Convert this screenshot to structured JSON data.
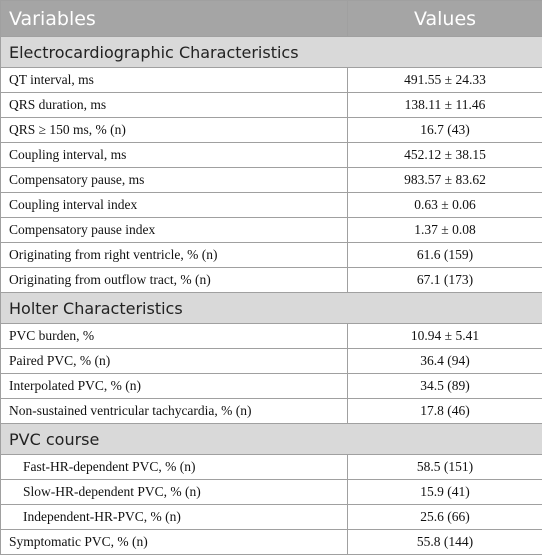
{
  "header": {
    "columns": [
      "Variables",
      "Values"
    ]
  },
  "sections": [
    {
      "title": "Electrocardiographic Characteristics",
      "rows": [
        [
          "QT interval, ms",
          "491.55 ± 24.33"
        ],
        [
          "QRS duration, ms",
          "138.11 ± 11.46"
        ],
        [
          "QRS ≥ 150 ms, % (n)",
          "16.7 (43)"
        ],
        [
          "Coupling interval, ms",
          "452.12 ± 38.15"
        ],
        [
          "Compensatory pause, ms",
          "983.57 ± 83.62"
        ],
        [
          "Coupling interval index",
          "0.63 ± 0.06"
        ],
        [
          "Compensatory pause index",
          "1.37 ± 0.08"
        ],
        [
          "Originating from right ventricle, % (n)",
          "61.6 (159)"
        ],
        [
          "Originating from outflow tract, % (n)",
          "67.1 (173)"
        ]
      ]
    },
    {
      "title": "Holter Characteristics",
      "rows": [
        [
          "PVC burden, %",
          "10.94 ± 5.41"
        ],
        [
          "Paired PVC, % (n)",
          "36.4 (94)"
        ],
        [
          "Interpolated PVC, % (n)",
          "34.5 (89)"
        ],
        [
          "Non-sustained ventricular tachycardia, % (n)",
          "17.8 (46)"
        ]
      ]
    },
    {
      "title": "PVC course",
      "rows": [
        [
          "Fast-HR-dependent PVC, % (n)",
          "58.5 (151)"
        ],
        [
          "Slow-HR-dependent PVC, % (n)",
          "15.9 (41)"
        ],
        [
          "Independent-HR-PVC, % (n)",
          "25.6 (66)"
        ],
        [
          "Symptomatic PVC, % (n)",
          "55.8 (144)"
        ]
      ]
    }
  ]
}
